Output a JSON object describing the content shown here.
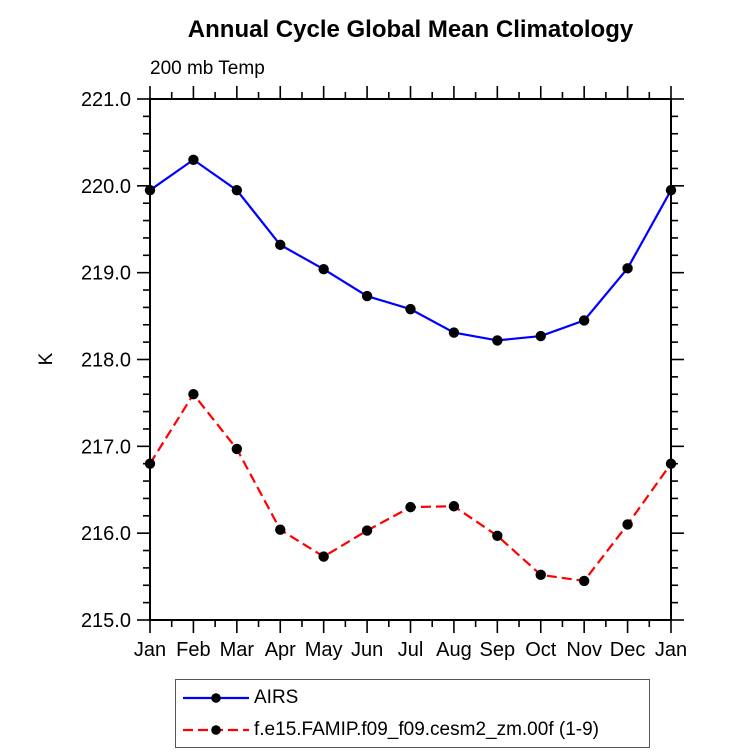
{
  "chart_data": {
    "type": "line",
    "title": "Annual Cycle Global Mean Climatology",
    "subtitle": "200 mb Temp",
    "xlabel": "",
    "ylabel": "K",
    "categories": [
      "Jan",
      "Feb",
      "Mar",
      "Apr",
      "May",
      "Jun",
      "Jul",
      "Aug",
      "Sep",
      "Oct",
      "Nov",
      "Dec",
      "Jan"
    ],
    "ylim": [
      215.0,
      221.0
    ],
    "ytick_major_interval": 1.0,
    "ytick_minor_interval": 0.2,
    "ytick_labels": [
      "215.0",
      "216.0",
      "217.0",
      "218.0",
      "219.0",
      "220.0",
      "221.0"
    ],
    "grid": false,
    "legend_position": "bottom",
    "axis_color": "#000000",
    "series": [
      {
        "name": "AIRS",
        "color": "#0000ff",
        "line_style": "solid",
        "marker": "filled-circle",
        "marker_color": "#000000",
        "values": [
          219.95,
          220.3,
          219.95,
          219.32,
          219.04,
          218.73,
          218.58,
          218.31,
          218.22,
          218.27,
          218.45,
          219.05,
          219.95
        ]
      },
      {
        "name": "f.e15.FAMIP.f09_f09.cesm2_zm.00f (1-9)",
        "color": "#ff0000",
        "line_style": "dashed",
        "marker": "filled-circle",
        "marker_color": "#000000",
        "values": [
          216.8,
          217.6,
          216.97,
          216.04,
          215.73,
          216.03,
          216.3,
          216.31,
          215.97,
          215.52,
          215.45,
          216.1,
          216.8
        ]
      }
    ]
  }
}
